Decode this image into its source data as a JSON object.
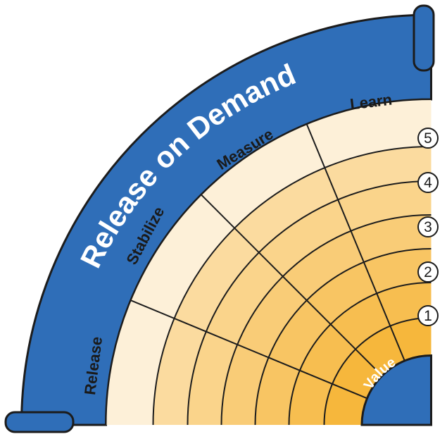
{
  "title": "Release on Demand",
  "center_label": "Value",
  "phases": [
    "Release",
    "Stabilize",
    "Measure",
    "Learn"
  ],
  "levels": [
    "1",
    "2",
    "3",
    "4",
    "5"
  ],
  "colors": {
    "frame_blue": "#2f6eb8",
    "frame_outline": "#1c1c1c",
    "band_inner": "#f6b73c",
    "band_outer": "#fde9c6",
    "header_band": "#fdf0d8",
    "line": "#1c1c1c",
    "label_text": "#1a1a1a",
    "title_text": "#ffffff"
  }
}
